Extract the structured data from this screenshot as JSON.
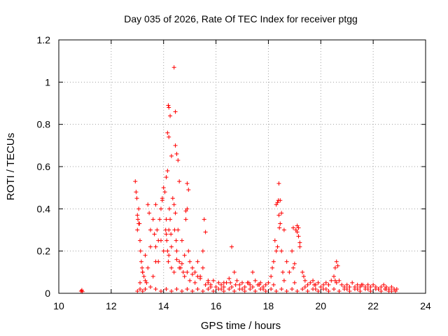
{
  "chart_data": {
    "type": "scatter",
    "title": "Day 035 of 2026, Rate Of TEC Index for receiver ptgg",
    "xlabel": "GPS time / hours",
    "ylabel": "ROTI / TECUs",
    "xlim": [
      10,
      24
    ],
    "ylim": [
      0,
      1.2
    ],
    "x_ticks": [
      10,
      12,
      14,
      16,
      18,
      20,
      22,
      24
    ],
    "y_ticks": [
      0,
      0.2,
      0.4,
      0.6,
      0.8,
      1,
      1.2
    ],
    "x_tick_labels": [
      "10",
      "12",
      "14",
      "16",
      "18",
      "20",
      "22",
      "24"
    ],
    "y_tick_labels": [
      "0",
      "0.2",
      "0.4",
      "0.6",
      "0.8",
      "1",
      "1.2"
    ],
    "grid": true,
    "marker": "plus",
    "marker_color": "#ff0000",
    "series": [
      {
        "x": [
          10.85,
          10.88,
          10.9,
          12.92,
          12.95,
          12.98,
          13.0,
          13.02,
          13.05,
          13.08,
          13.1,
          13.12,
          13.15,
          13.18,
          13.2,
          13.25,
          13.3,
          13.35,
          13.4,
          13.45,
          13.5,
          13.6,
          13.65,
          13.7,
          13.75,
          13.8,
          13.85,
          13.9,
          13.95,
          14.0,
          14.05,
          14.08,
          14.1,
          14.12,
          14.15,
          14.18,
          14.2,
          14.22,
          14.25,
          14.28,
          14.3,
          14.35,
          14.4,
          14.42,
          14.45,
          14.48,
          14.5,
          14.55,
          14.6,
          14.65,
          14.7,
          14.75,
          14.8,
          14.85,
          14.9,
          14.95,
          15.0,
          14.18,
          14.2,
          14.25,
          14.4,
          14.45,
          14.15,
          14.2,
          14.45,
          14.5,
          14.55,
          14.3,
          14.6,
          14.9,
          14.95,
          13.0,
          13.05,
          13.95,
          14.1,
          14.15,
          13.7,
          14.85,
          15.1,
          15.2,
          15.3,
          15.4,
          15.5,
          15.55,
          15.6,
          15.7,
          15.8,
          15.9,
          16.0,
          16.1,
          16.2,
          16.3,
          16.4,
          16.5,
          16.55,
          16.6,
          16.7,
          16.8,
          16.9,
          17.0,
          17.1,
          17.2,
          17.3,
          17.4,
          17.5,
          17.6,
          17.7,
          17.8,
          17.9,
          18.0,
          18.1,
          18.2,
          18.25,
          18.3,
          18.35,
          18.4,
          18.45,
          18.5,
          18.6,
          18.7,
          18.8,
          18.9,
          19.0,
          19.05,
          19.1,
          19.15,
          19.2,
          19.3,
          19.4,
          19.5,
          19.6,
          19.7,
          19.8,
          19.9,
          18.35,
          18.38,
          18.4,
          18.42,
          18.45,
          18.3,
          18.5,
          19.1,
          19.15,
          19.2,
          18.95,
          20.0,
          20.1,
          20.2,
          20.3,
          20.4,
          20.5,
          20.55,
          20.6,
          20.65,
          20.7,
          20.8,
          20.9,
          21.0,
          21.1,
          21.2,
          21.3,
          21.4,
          21.5,
          21.6,
          21.7,
          21.8,
          21.9,
          22.0,
          22.1,
          22.2,
          22.3,
          22.4,
          22.5,
          22.6,
          22.7,
          22.8,
          22.85,
          13.1,
          13.2,
          13.4,
          13.6,
          13.8,
          14.0,
          14.2,
          14.4,
          14.6,
          14.8,
          15.0,
          15.2,
          15.4,
          15.6,
          15.8,
          16.2,
          16.6,
          17.0,
          17.4,
          17.8,
          18.2,
          18.6,
          19.0,
          19.4,
          19.8,
          20.2,
          20.6,
          21.0,
          21.4,
          21.8,
          22.2,
          22.6,
          13.3,
          13.5,
          13.7,
          13.9,
          14.1,
          14.3,
          14.5,
          14.7,
          14.9,
          15.1,
          15.3,
          15.5,
          15.7,
          16.3,
          16.75,
          17.25,
          17.65,
          18.15,
          18.55,
          18.95,
          19.35,
          19.75,
          20.55,
          21.55,
          22.45,
          13.0,
          13.1,
          13.2,
          13.3,
          13.5,
          13.7,
          13.9,
          14.1,
          14.3,
          14.5,
          14.7,
          14.9,
          15.1,
          15.3,
          15.5,
          15.7,
          15.9,
          16.1,
          16.3,
          16.5,
          16.7,
          16.9,
          17.1,
          17.3,
          17.5,
          17.7,
          17.9,
          18.1,
          18.3,
          18.5,
          18.7,
          18.9,
          19.1,
          19.3,
          19.5,
          19.7,
          19.9,
          20.1,
          20.3,
          20.5,
          20.7,
          20.9,
          21.1,
          21.3,
          21.5,
          21.7,
          21.9,
          22.1,
          22.3,
          22.5,
          22.7,
          22.9
        ],
        "y": [
          0.01,
          0.015,
          0.008,
          0.53,
          0.48,
          0.45,
          0.3,
          0.35,
          0.4,
          0.33,
          0.25,
          0.2,
          0.15,
          0.12,
          0.1,
          0.08,
          0.06,
          0.05,
          0.42,
          0.38,
          0.3,
          0.35,
          0.28,
          0.22,
          0.3,
          0.25,
          0.35,
          0.4,
          0.45,
          0.5,
          0.48,
          0.3,
          0.35,
          0.25,
          0.2,
          0.15,
          0.3,
          0.4,
          0.35,
          0.28,
          0.22,
          0.45,
          0.42,
          0.3,
          0.38,
          0.25,
          0.2,
          0.3,
          0.15,
          0.12,
          0.25,
          0.1,
          0.18,
          0.35,
          0.4,
          0.2,
          0.15,
          0.89,
          0.88,
          0.84,
          1.07,
          0.86,
          0.76,
          0.74,
          0.7,
          0.66,
          0.63,
          0.65,
          0.53,
          0.52,
          0.49,
          0.37,
          0.33,
          0.44,
          0.55,
          0.58,
          0.42,
          0.39,
          0.12,
          0.1,
          0.15,
          0.08,
          0.2,
          0.35,
          0.29,
          0.05,
          0.04,
          0.06,
          0.03,
          0.05,
          0.04,
          0.03,
          0.05,
          0.07,
          0.05,
          0.22,
          0.1,
          0.06,
          0.04,
          0.05,
          0.03,
          0.05,
          0.04,
          0.1,
          0.06,
          0.04,
          0.05,
          0.03,
          0.04,
          0.05,
          0.08,
          0.15,
          0.25,
          0.2,
          0.22,
          0.52,
          0.44,
          0.38,
          0.3,
          0.15,
          0.1,
          0.2,
          0.14,
          0.3,
          0.32,
          0.27,
          0.24,
          0.1,
          0.06,
          0.04,
          0.05,
          0.06,
          0.04,
          0.05,
          0.43,
          0.44,
          0.37,
          0.31,
          0.33,
          0.42,
          0.2,
          0.29,
          0.31,
          0.22,
          0.31,
          0.03,
          0.04,
          0.05,
          0.04,
          0.06,
          0.08,
          0.12,
          0.15,
          0.13,
          0.06,
          0.04,
          0.03,
          0.04,
          0.03,
          0.05,
          0.03,
          0.04,
          0.03,
          0.04,
          0.03,
          0.04,
          0.03,
          0.04,
          0.03,
          0.02,
          0.03,
          0.04,
          0.03,
          0.02,
          0.03,
          0.02,
          0.01,
          0.05,
          0.1,
          0.12,
          0.08,
          0.15,
          0.2,
          0.18,
          0.1,
          0.12,
          0.08,
          0.06,
          0.05,
          0.07,
          0.04,
          0.03,
          0.02,
          0.03,
          0.02,
          0.03,
          0.02,
          0.04,
          0.06,
          0.05,
          0.03,
          0.02,
          0.02,
          0.05,
          0.02,
          0.02,
          0.02,
          0.02,
          0.01,
          0.18,
          0.22,
          0.15,
          0.25,
          0.28,
          0.12,
          0.16,
          0.14,
          0.1,
          0.09,
          0.08,
          0.12,
          0.06,
          0.05,
          0.04,
          0.05,
          0.04,
          0.12,
          0.1,
          0.12,
          0.08,
          0.04,
          0.06,
          0.04,
          0.02,
          0.01,
          0.02,
          0.01,
          0.02,
          0.03,
          0.02,
          0.01,
          0.02,
          0.01,
          0.02,
          0.01,
          0.02,
          0.01,
          0.02,
          0.01,
          0.02,
          0.01,
          0.02,
          0.01,
          0.02,
          0.01,
          0.02,
          0.01,
          0.02,
          0.01,
          0.02,
          0.01,
          0.02,
          0.01,
          0.02,
          0.01,
          0.02,
          0.01,
          0.02,
          0.01,
          0.02,
          0.01,
          0.02,
          0.01,
          0.02,
          0.01,
          0.02,
          0.01,
          0.02,
          0.01,
          0.02,
          0.01,
          0.02,
          0.01,
          0.02,
          0.01,
          0.02
        ]
      }
    ]
  }
}
